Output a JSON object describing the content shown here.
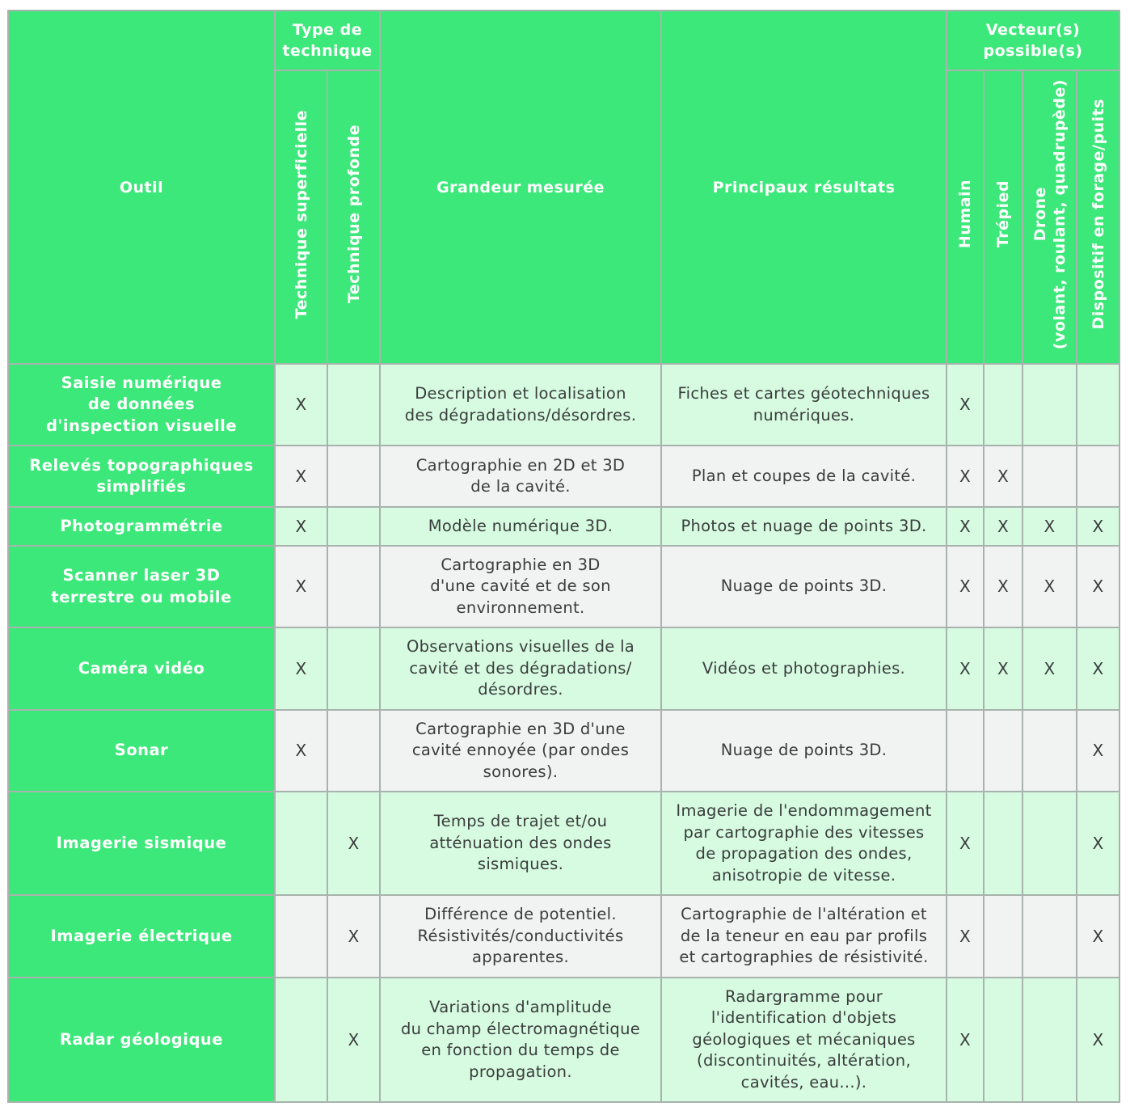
{
  "header": {
    "outil": "Outil",
    "type_technique": "Type de\ntechnique",
    "superficielle": "Technique superficielle",
    "profonde": "Technique profonde",
    "grandeur": "Grandeur mesurée",
    "resultats": "Principaux résultats",
    "vecteurs": "Vecteur(s)\npossible(s)",
    "humain": "Humain",
    "trepied": "Trépied",
    "drone": "Drone\n(volant, roulant, quadrupède)",
    "forage": "Dispositif en forage/puits"
  },
  "mark": "X",
  "rows": [
    {
      "outil": "Saisie numérique\nde données\nd'inspection visuelle",
      "grandeur": "Description et localisation\ndes dégradations/désordres.",
      "resultats": "Fiches et cartes géotechniques\nnumériques.",
      "marks": {
        "sup": "X",
        "prof": "",
        "humain": "X",
        "trepied": "",
        "drone": "",
        "forage": ""
      }
    },
    {
      "outil": "Relevés topographiques\nsimplifiés",
      "grandeur": "Cartographie en 2D et 3D\nde la cavité.",
      "resultats": "Plan et coupes de la cavité.",
      "marks": {
        "sup": "X",
        "prof": "",
        "humain": "X",
        "trepied": "X",
        "drone": "",
        "forage": ""
      }
    },
    {
      "outil": "Photogrammétrie",
      "grandeur": "Modèle numérique 3D.",
      "resultats": "Photos et nuage de points 3D.",
      "marks": {
        "sup": "X",
        "prof": "",
        "humain": "X",
        "trepied": "X",
        "drone": "X",
        "forage": "X"
      }
    },
    {
      "outil": "Scanner laser 3D\nterrestre ou mobile",
      "grandeur": "Cartographie en 3D\nd'une cavité et de son\nenvironnement.",
      "resultats": "Nuage de points 3D.",
      "marks": {
        "sup": "X",
        "prof": "",
        "humain": "X",
        "trepied": "X",
        "drone": "X",
        "forage": "X"
      }
    },
    {
      "outil": "Caméra vidéo",
      "grandeur": "Observations visuelles de la\ncavité et des dégradations/\ndésordres.",
      "resultats": "Vidéos et photographies.",
      "marks": {
        "sup": "X",
        "prof": "",
        "humain": "X",
        "trepied": "X",
        "drone": "X",
        "forage": "X"
      }
    },
    {
      "outil": "Sonar",
      "grandeur": "Cartographie en 3D d'une\ncavité ennoyée (par ondes\nsonores).",
      "resultats": "Nuage de points 3D.",
      "marks": {
        "sup": "X",
        "prof": "",
        "humain": "",
        "trepied": "",
        "drone": "",
        "forage": "X"
      }
    },
    {
      "outil": "Imagerie sismique",
      "grandeur": "Temps de trajet et/ou\natténuation des ondes\nsismiques.",
      "resultats": "Imagerie de l'endommagement\npar cartographie des vitesses\nde propagation des ondes,\nanisotropie de vitesse.",
      "marks": {
        "sup": "",
        "prof": "X",
        "humain": "X",
        "trepied": "",
        "drone": "",
        "forage": "X"
      }
    },
    {
      "outil": "Imagerie électrique",
      "grandeur": "Différence de potentiel.\nRésistivités/conductivités\napparentes.",
      "resultats": "Cartographie de l'altération et\nde la teneur en eau par profils\net cartographies de résistivité.",
      "marks": {
        "sup": "",
        "prof": "X",
        "humain": "X",
        "trepied": "",
        "drone": "",
        "forage": "X"
      }
    },
    {
      "outil": "Radar géologique",
      "grandeur": "Variations d'amplitude\ndu champ électromagnétique\nen fonction du temps de\npropagation.",
      "resultats": "Radargramme pour\nl'identification d'objets\ngéologiques et mécaniques\n(discontinuités, altération,\ncavités, eau...).",
      "marks": {
        "sup": "",
        "prof": "X",
        "humain": "X",
        "trepied": "",
        "drone": "",
        "forage": "X"
      }
    }
  ],
  "colors": {
    "header_green": "#3de87a",
    "row_green": "#d6fbe1",
    "row_gray": "#f1f2f2",
    "border": "#a9b3ae"
  }
}
